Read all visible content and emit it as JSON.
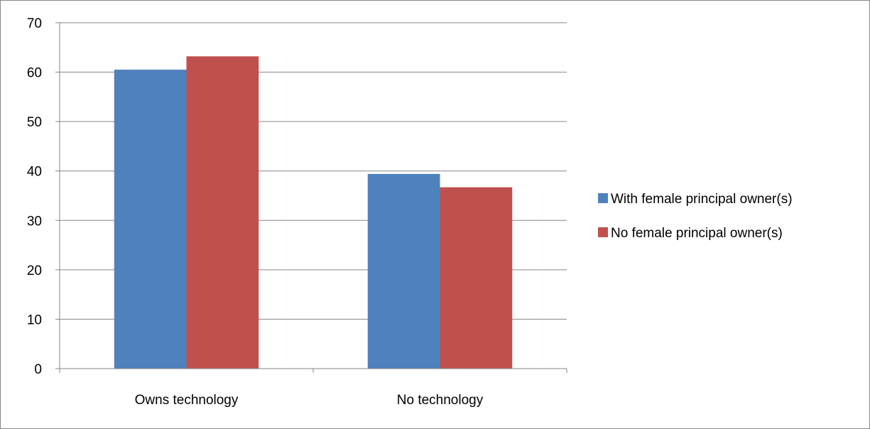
{
  "chart_data": {
    "type": "bar",
    "categories": [
      "Owns technology",
      "No technology"
    ],
    "series": [
      {
        "name": "With female principal owner(s)",
        "color": "#4F81BD",
        "values": [
          60.5,
          39.4
        ]
      },
      {
        "name": "No female principal owner(s)",
        "color": "#C0504D",
        "values": [
          63.2,
          36.7
        ]
      }
    ],
    "ylim": [
      0,
      70
    ],
    "yticks": [
      0,
      10,
      20,
      30,
      40,
      50,
      60,
      70
    ],
    "grid": true,
    "legend_position": "right",
    "gridline_color": "#868686"
  }
}
